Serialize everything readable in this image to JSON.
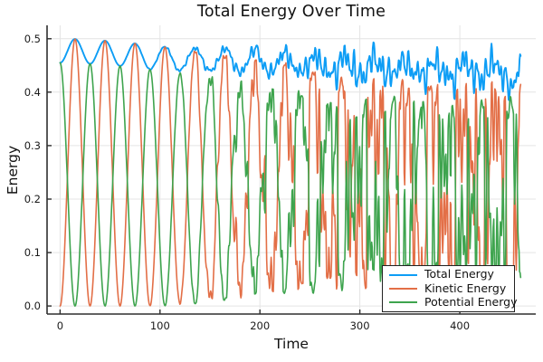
{
  "figure": {
    "background": "#ffffff"
  },
  "chart_data": {
    "type": "line",
    "title": "Total Energy Over Time",
    "xlabel": "Time",
    "ylabel": "Energy",
    "xlim": [
      -13,
      476
    ],
    "ylim": [
      -0.015,
      0.525
    ],
    "xticks": {
      "values": [
        0,
        100,
        200,
        300,
        400
      ],
      "labels": [
        "0",
        "100",
        "200",
        "300",
        "400"
      ]
    },
    "yticks": {
      "values": [
        0.0,
        0.1,
        0.2,
        0.3,
        0.4,
        0.5
      ],
      "labels": [
        "0.0",
        "0.1",
        "0.2",
        "0.3",
        "0.4",
        "0.5"
      ]
    },
    "grid": true,
    "gridline_color": "#e4e4e4",
    "axis_color": "#2e2e2e",
    "text_color": "#1a1a1a",
    "legend": {
      "position": "bottom-right",
      "border_color": "#222222",
      "background": "#ffffff"
    },
    "series": [
      {
        "name": "Total Energy",
        "role": "total",
        "color": "#0d9df5",
        "stroke_width": 1.9,
        "description": "Sum of kinetic and potential energy; oscillates 0.45-0.50 early, drifts down to noisy 0.40-0.46 band by t=460"
      },
      {
        "name": "Kinetic Energy",
        "role": "kinetic",
        "color": "#e36f47",
        "stroke_width": 1.6,
        "description": "Oscillates 0 to 0.50 with period ~30, peak amplitude decays to ~0.40 and motion becomes chaotic after t~300"
      },
      {
        "name": "Potential Energy",
        "role": "potential",
        "color": "#3ea44e",
        "stroke_width": 1.6,
        "description": "Antiphase to kinetic; oscillates 0 to ~0.455, peaks decay to ~0.36, chaotic after t~300"
      }
    ],
    "generator": {
      "t_start": 0,
      "t_end": 461,
      "dt": 0.55,
      "exchange_period": 30,
      "kinetic": {
        "base": 0.5,
        "drop": 0.095,
        "pow": 1.7,
        "knee": 300,
        "late_drop": 0.01
      },
      "potential": {
        "base": 0.455,
        "drop": 0.09,
        "pow": 1.7,
        "knee": 300,
        "late_drop": 0.006
      },
      "floor": {
        "max": 0.06,
        "onset": 100,
        "full": 300,
        "pow": 1.2
      },
      "noise": {
        "wavelengths": [
          3.2,
          4.9,
          6.9,
          9.6,
          14.8,
          23.5
        ],
        "exchange_amp": 1.25,
        "exchange_onset": 110,
        "exchange_pow": 1.6,
        "independent_amp": 0.04,
        "independent_onset": 70,
        "independent_pow": 1.3,
        "full": 300,
        "phases": {
          "exchange": [
            0.9,
            2.3,
            4.1,
            5.6,
            1.4,
            3.0
          ],
          "kinetic": [
            1.7,
            0.3,
            2.9,
            4.8,
            0.6,
            5.2
          ],
          "potential": [
            3.4,
            1.2,
            5.0,
            2.2,
            4.5,
            0.8
          ]
        }
      },
      "end_dip": {
        "t": 450,
        "width": 5,
        "amp": 0.022
      },
      "key_values": {
        "total_start": 0.455,
        "total_peak": 0.5,
        "total_end_range": [
          0.405,
          0.46
        ],
        "kinetic_start": 0.0,
        "kinetic_first_peak": 0.5,
        "kinetic_late_peak": 0.4,
        "potential_start": 0.455,
        "potential_first_peak": 0.45,
        "potential_late_peak": 0.36,
        "chaos_onset_time": 290
      }
    }
  }
}
